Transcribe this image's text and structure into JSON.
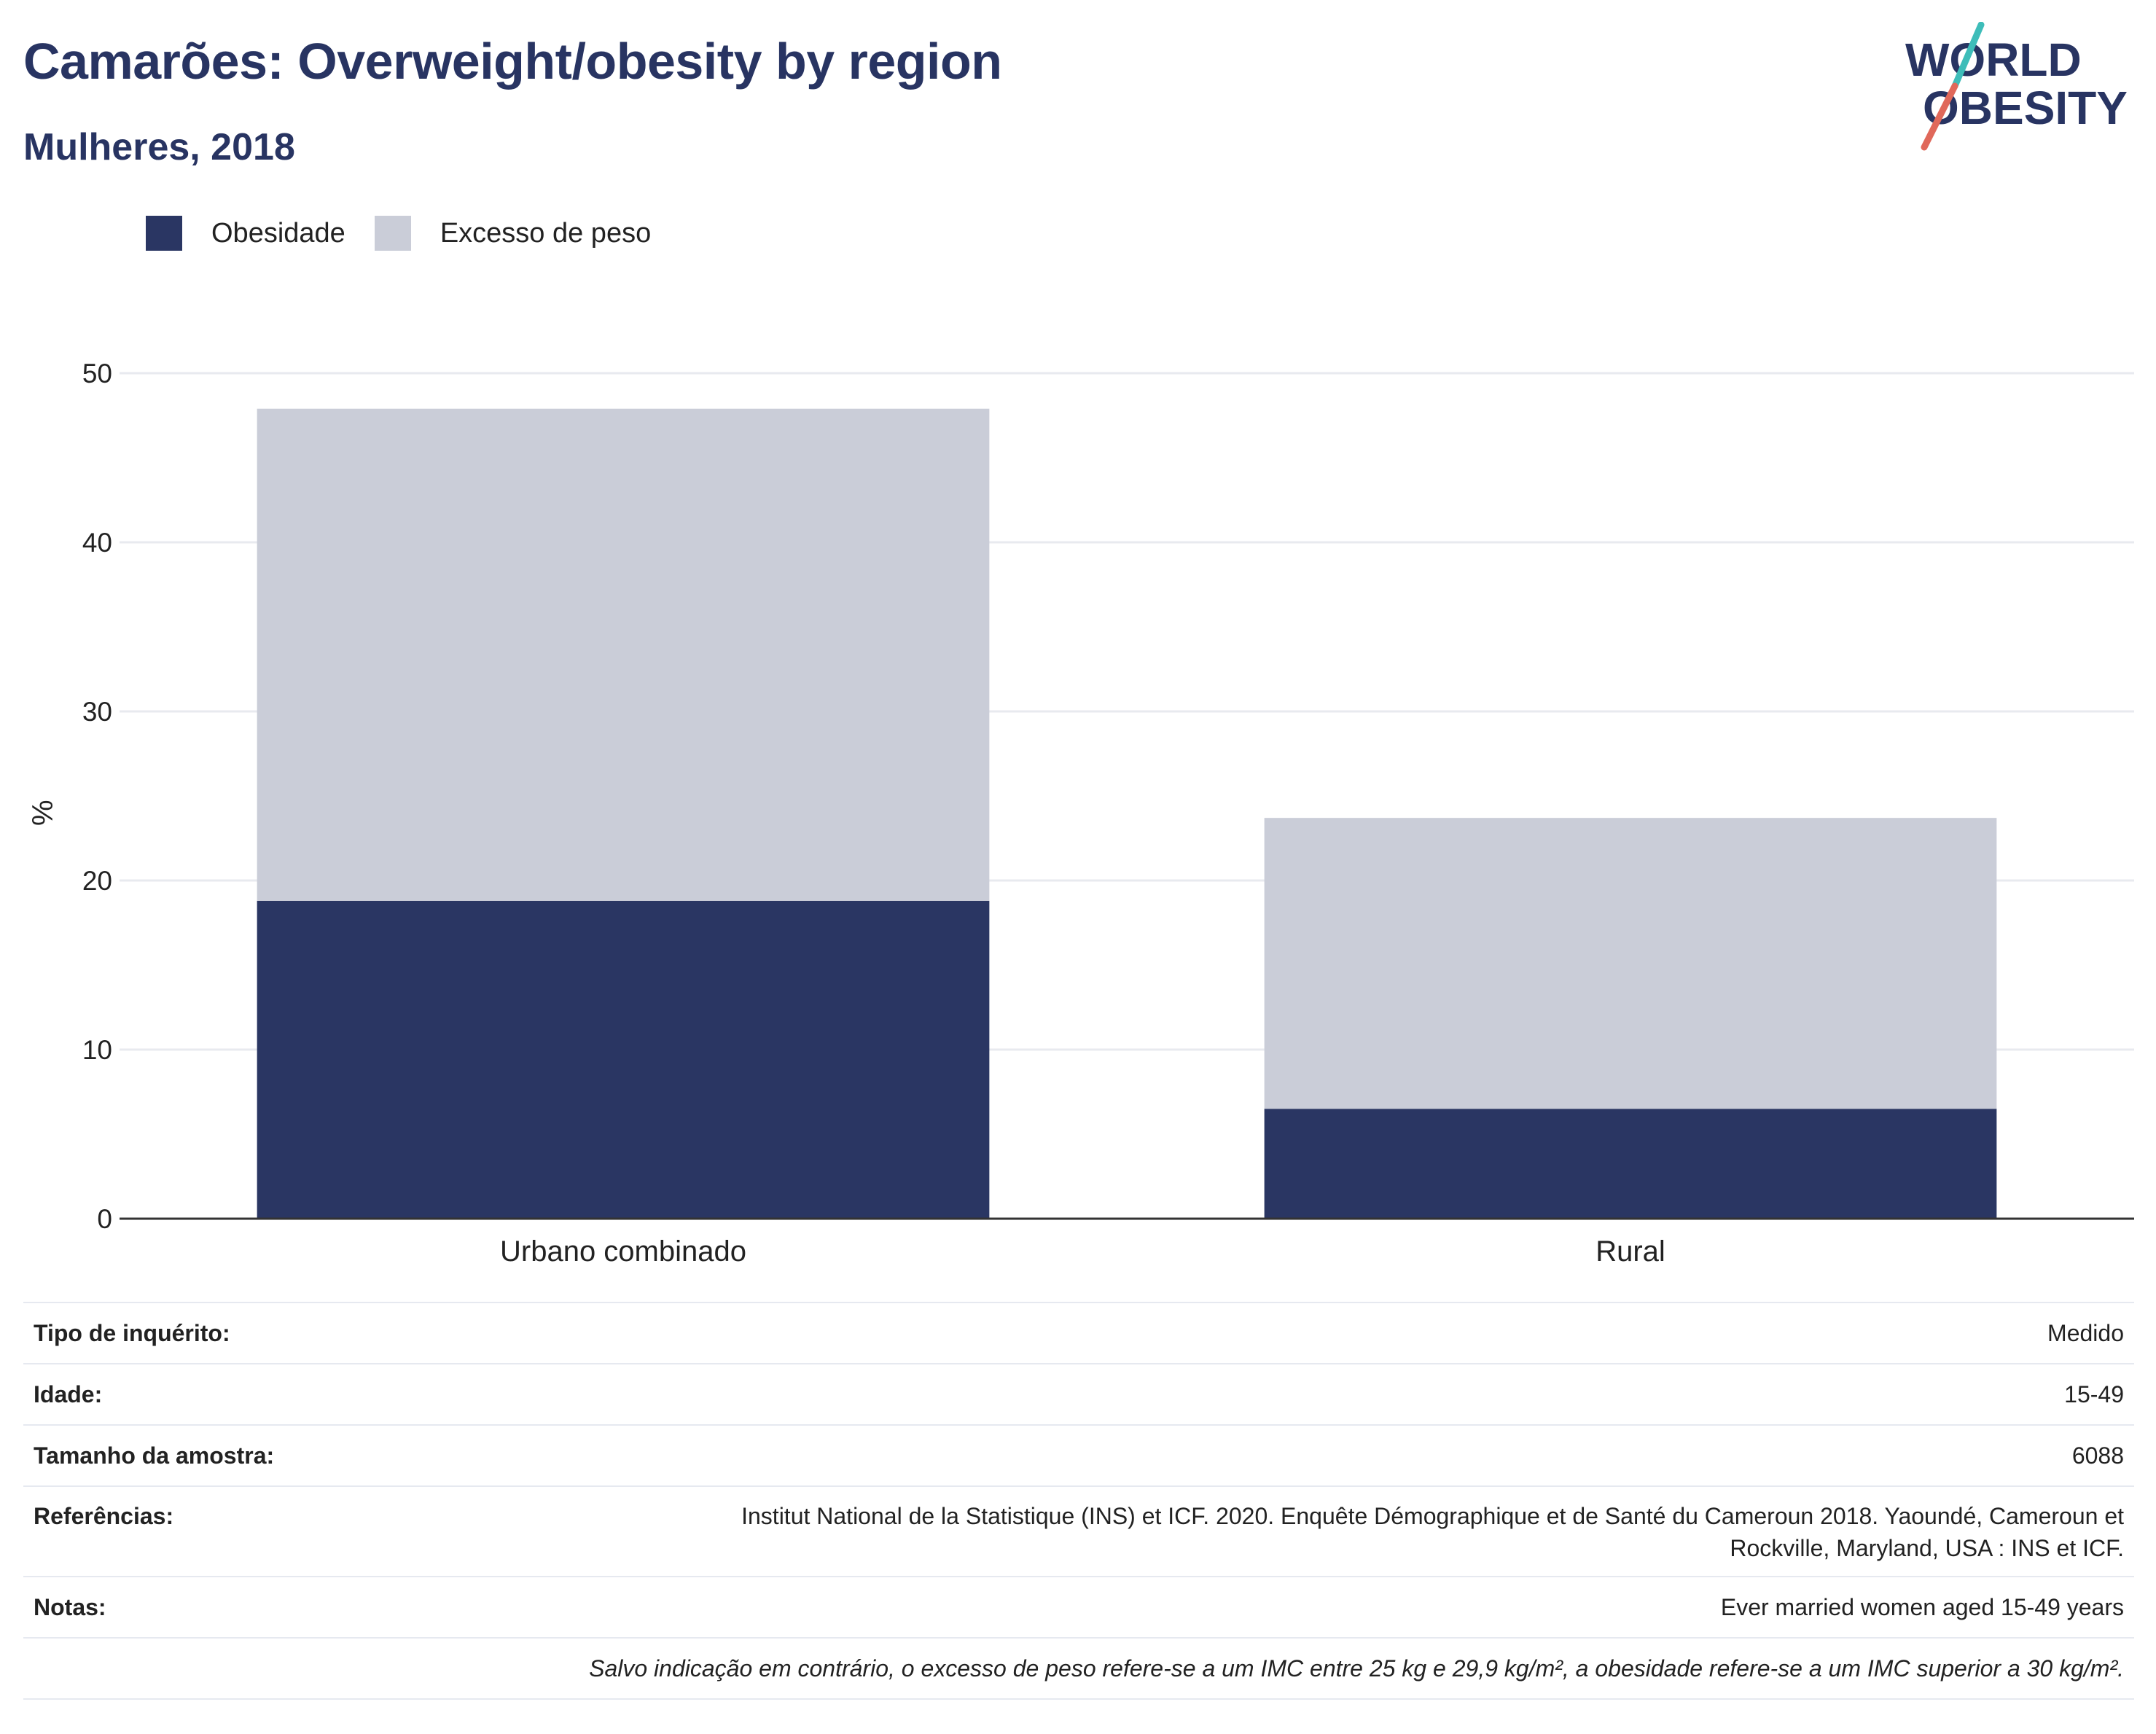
{
  "header": {
    "title": "Camarões: Overweight/obesity by region",
    "subtitle": "Mulheres, 2018"
  },
  "logo": {
    "line1": "WORLD",
    "line2": "OBESITY",
    "slash_top_color": "#3ebdb9",
    "slash_bottom_color": "#e0685a"
  },
  "colors": {
    "brand": "#283462",
    "obesity": "#2a3663",
    "overweight": "#cacdd8",
    "gridline": "#e8eaef",
    "axis": "#333333"
  },
  "legend": {
    "items": [
      {
        "label": "Obesidade",
        "color": "#2a3663"
      },
      {
        "label": "Excesso de peso",
        "color": "#cacdd8"
      }
    ]
  },
  "chart_data": {
    "type": "bar",
    "stacked": true,
    "title": "Camarões: Overweight/obesity by region",
    "subtitle": "Mulheres, 2018",
    "categories": [
      "Urbano combinado",
      "Rural"
    ],
    "series": [
      {
        "name": "Obesidade",
        "values": [
          18.8,
          6.5
        ],
        "color": "#2a3663"
      },
      {
        "name": "Excesso de peso",
        "values": [
          29.1,
          17.2
        ],
        "color": "#cacdd8"
      }
    ],
    "totals": [
      47.9,
      23.7
    ],
    "xlabel": "",
    "ylabel": "%",
    "ylim": [
      0,
      50
    ],
    "yticks": [
      0,
      10,
      20,
      30,
      40,
      50
    ],
    "grid": true,
    "legend_position": "top-left"
  },
  "info": {
    "survey_type_label": "Tipo de inquérito:",
    "survey_type_value": "Medido",
    "age_label": "Idade:",
    "age_value": "15-49",
    "sample_label": "Tamanho da amostra:",
    "sample_value": "6088",
    "references_label": "Referências:",
    "references_line1": "Institut National de la Statistique (INS) et ICF. 2020. Enquête Démographique et de Santé du Cameroun 2018. Yaoundé, Cameroun et",
    "references_line2": "Rockville, Maryland, USA : INS et ICF.",
    "notes_label": "Notas:",
    "notes_value": "Ever married women aged 15-49 years",
    "footnote": "Salvo indicação em contrário, o excesso de peso refere-se a um IMC entre 25 kg e 29,9 kg/m², a obesidade refere-se a um IMC superior a 30 kg/m²."
  }
}
